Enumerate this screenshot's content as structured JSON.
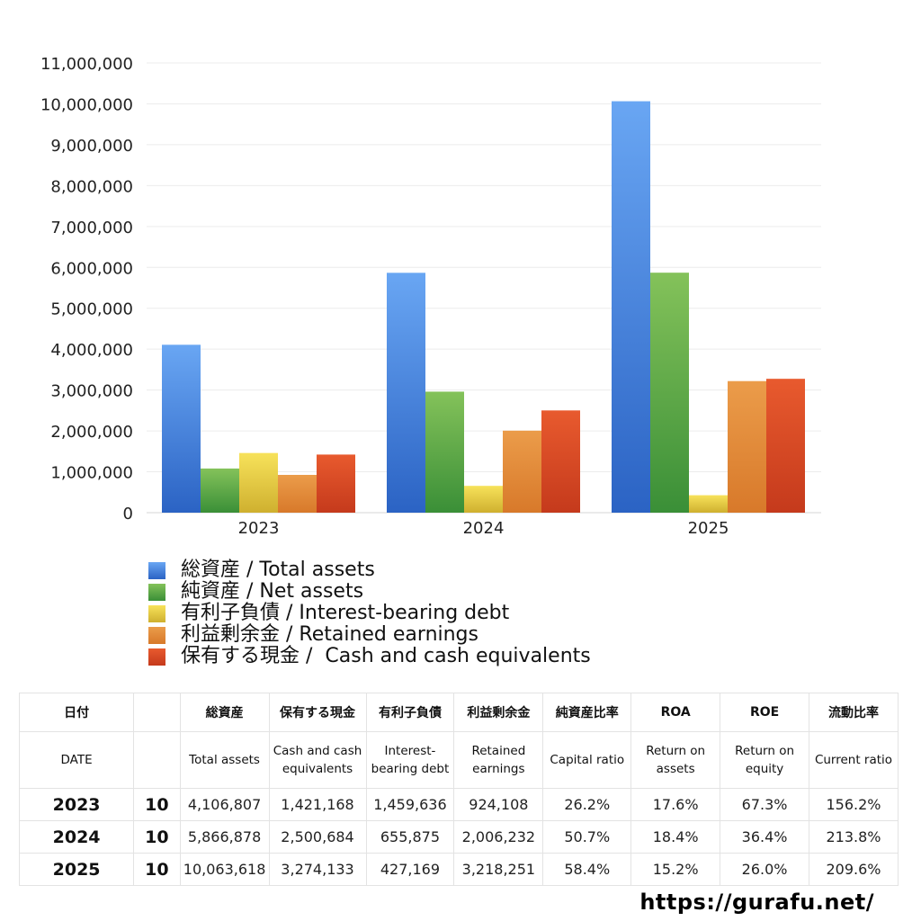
{
  "chart_data": {
    "type": "bar",
    "categories": [
      "2023",
      "2024",
      "2025"
    ],
    "series": [
      {
        "name": "総資産 / Total assets",
        "values": [
          4106807,
          5866878,
          10063618
        ],
        "color_top": "#69a6f3",
        "color_bottom": "#2b63c4"
      },
      {
        "name": "純資産 / Net assets",
        "values": [
          1080000,
          2960000,
          5870000
        ],
        "color_top": "#84c25a",
        "color_bottom": "#3a8f37"
      },
      {
        "name": "有利子負債 / Interest-bearing debt",
        "values": [
          1459636,
          655875,
          427169
        ],
        "color_top": "#f7e25a",
        "color_bottom": "#cfb02f"
      },
      {
        "name": "利益剰余金 / Retained earnings",
        "values": [
          924108,
          2006232,
          3218251
        ],
        "color_top": "#eb9c4a",
        "color_bottom": "#d8792a"
      },
      {
        "name": "保有する現金 /  Cash and cash equivalents",
        "values": [
          1421168,
          2500684,
          3274133
        ],
        "color_top": "#e85a2e",
        "color_bottom": "#c53a1c"
      }
    ],
    "yticks": [
      "0",
      "1,000,000",
      "2,000,000",
      "3,000,000",
      "4,000,000",
      "5,000,000",
      "6,000,000",
      "7,000,000",
      "8,000,000",
      "9,000,000",
      "10,000,000",
      "11,000,000"
    ],
    "ylim": [
      0,
      11000000
    ],
    "title": "",
    "xlabel": "",
    "ylabel": "",
    "grid": true,
    "legend_position": "bottom"
  },
  "table": {
    "header_jp": [
      "日付",
      "",
      "総資産",
      "保有する現金",
      "有利子負債",
      "利益剰余金",
      "純資産比率",
      "ROA",
      "ROE",
      "流動比率"
    ],
    "header_en": [
      "DATE",
      "",
      "Total assets",
      "Cash and cash equivalents",
      "Interest-bearing debt",
      "Retained earnings",
      "Capital ratio",
      "Return on assets",
      "Return on equity",
      "Current ratio"
    ],
    "rows": [
      [
        "2023",
        "10",
        "4,106,807",
        "1,421,168",
        "1,459,636",
        "924,108",
        "26.2%",
        "17.6%",
        "67.3%",
        "156.2%"
      ],
      [
        "2024",
        "10",
        "5,866,878",
        "2,500,684",
        "655,875",
        "2,006,232",
        "50.7%",
        "18.4%",
        "36.4%",
        "213.8%"
      ],
      [
        "2025",
        "10",
        "10,063,618",
        "3,274,133",
        "427,169",
        "3,218,251",
        "58.4%",
        "15.2%",
        "26.0%",
        "209.6%"
      ]
    ]
  },
  "footer": {
    "url": "https://gurafu.net/"
  }
}
